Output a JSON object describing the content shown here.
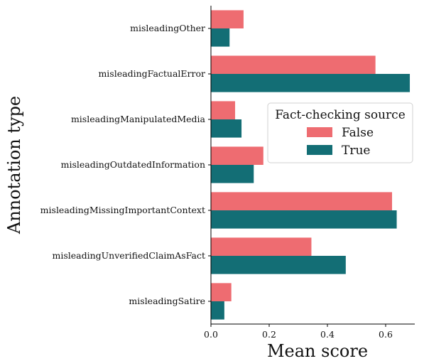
{
  "chart_data": {
    "type": "bar",
    "orientation": "horizontal",
    "categories": [
      "misleadingOther",
      "misleadingFactualError",
      "misleadingManipulatedMedia",
      "misleadingOutdatedInformation",
      "misleadingMissingImportantContext",
      "misleadingUnverifiedClaimAsFact",
      "misleadingSatire"
    ],
    "series": [
      {
        "name": "False",
        "color": "#ee6c71",
        "values": [
          0.112,
          0.565,
          0.083,
          0.18,
          0.622,
          0.345,
          0.07
        ]
      },
      {
        "name": "True",
        "color": "#136e75",
        "values": [
          0.064,
          0.683,
          0.105,
          0.147,
          0.638,
          0.463,
          0.046
        ]
      }
    ],
    "xlabel": "Mean score",
    "ylabel": "Annotation type",
    "xlim": [
      0,
      0.7
    ],
    "xticks": [
      "0.0",
      "0.2",
      "0.4",
      "0.6"
    ],
    "legend": {
      "title": "Fact-checking source",
      "placement": "center-right"
    },
    "grid": false
  }
}
